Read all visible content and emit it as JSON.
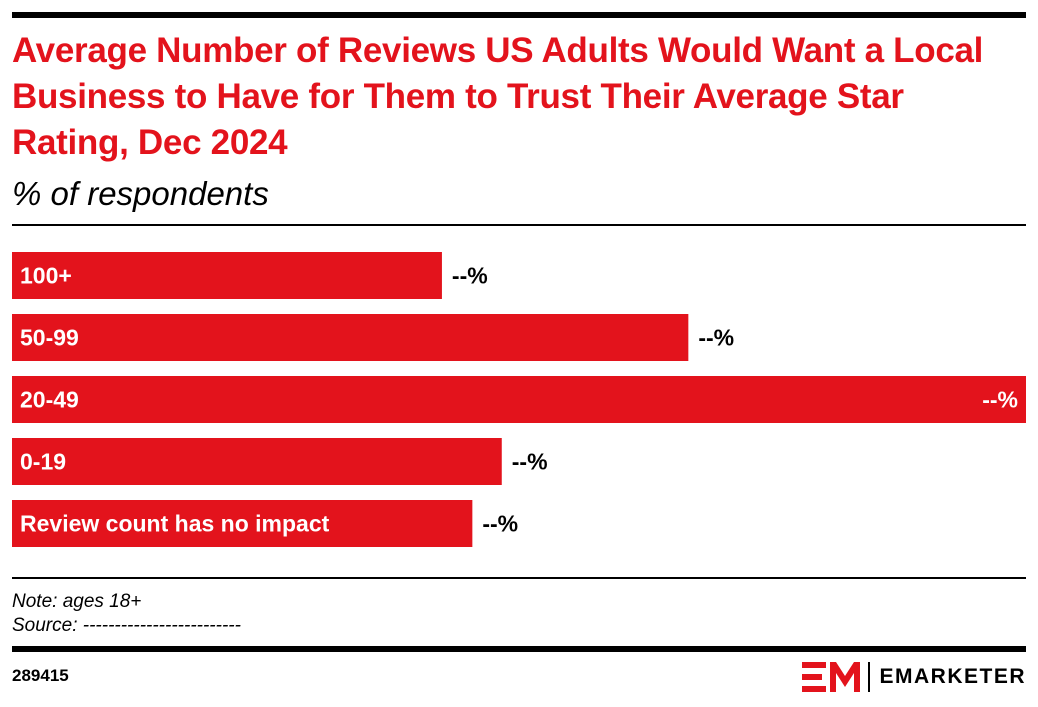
{
  "header": {
    "title": "Average Number of Reviews US Adults Would Want a Local Business to Have for Them to Trust Their Average Star Rating, Dec 2024",
    "subtitle": "% of respondents"
  },
  "chart_data": {
    "type": "bar",
    "orientation": "horizontal",
    "categories": [
      "100+",
      "50-99",
      "20-49",
      "0-19",
      "Review count has no impact"
    ],
    "values": [
      42.4,
      66.7,
      100,
      48.3,
      45.4
    ],
    "value_labels": [
      "--%",
      "--%",
      "--%",
      "--%",
      "--%"
    ],
    "xlim": [
      0,
      100
    ],
    "grid": false,
    "legend": "none",
    "bar_color": "#e3131c"
  },
  "footer": {
    "note": "Note: ages 18+",
    "source": "Source: -------------------------",
    "chart_id": "289415",
    "brand": "EMARKETER"
  },
  "colors": {
    "accent": "#e3131c",
    "text": "#000000"
  }
}
